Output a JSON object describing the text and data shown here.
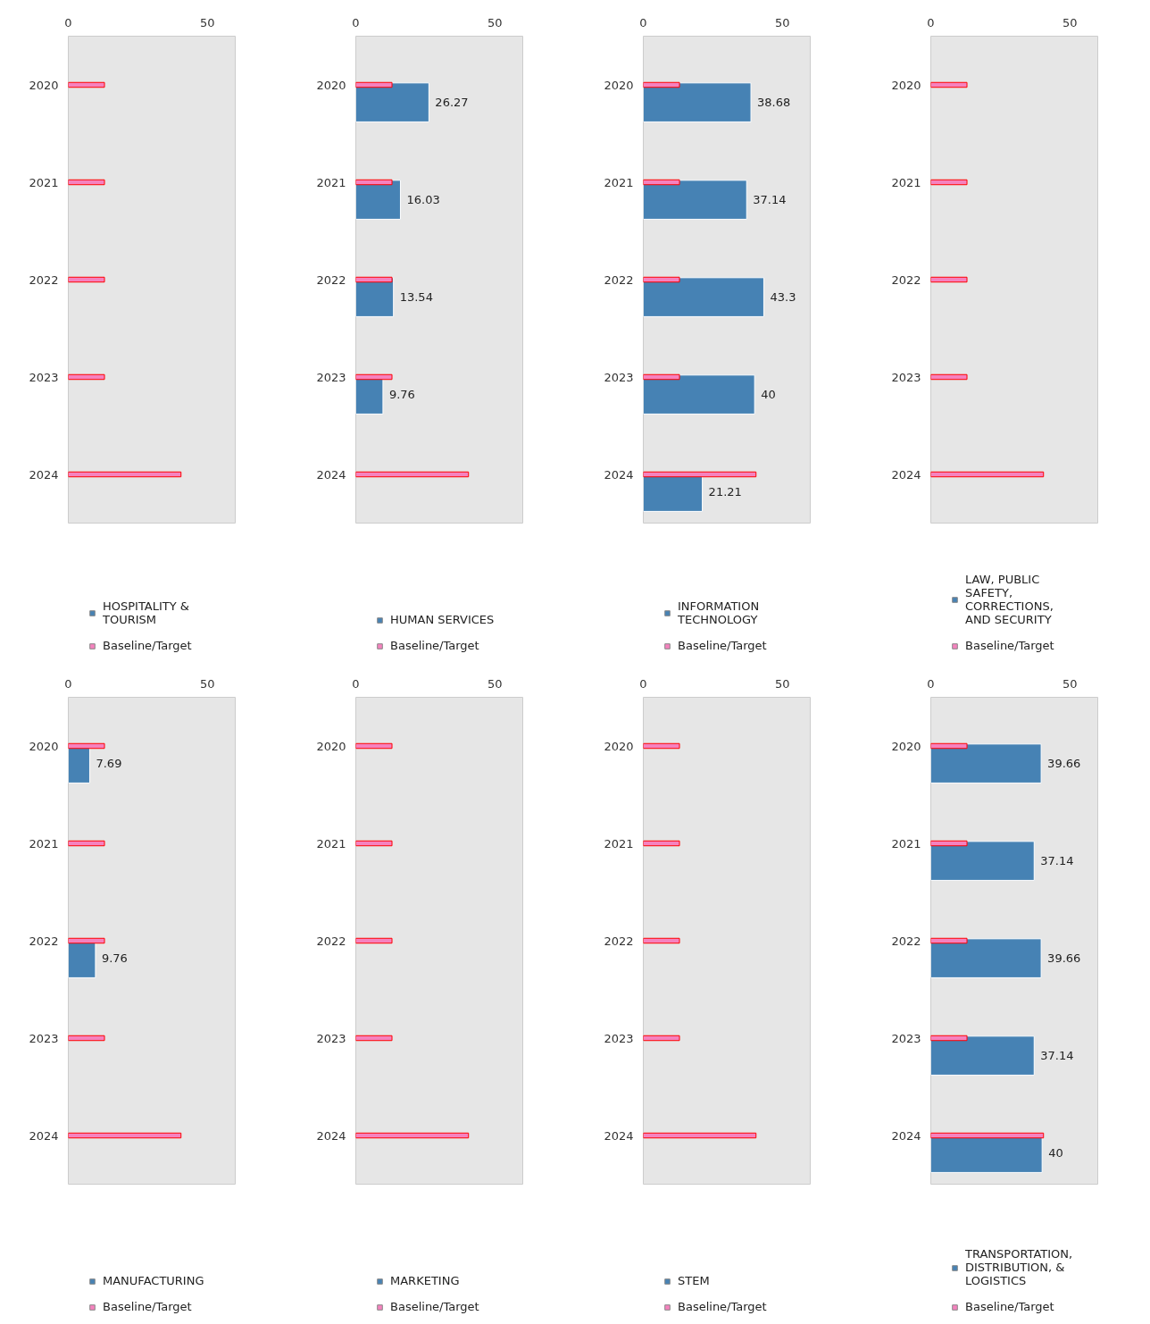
{
  "chart_data": [
    {
      "type": "bar",
      "orientation": "horizontal",
      "categories": [
        "2020",
        "2021",
        "2022",
        "2023",
        "2024"
      ],
      "xlim": [
        0,
        60
      ],
      "xticks": [
        0,
        50
      ],
      "legend": "bottom",
      "series": [
        {
          "name": "HOSPITALITY & TOURISM",
          "color": "#4682b4",
          "values": [
            null,
            null,
            null,
            null,
            null
          ]
        },
        {
          "name": "Baseline/Target",
          "color": "#f582be",
          "values": [
            13,
            13,
            13,
            13,
            40.5
          ]
        }
      ]
    },
    {
      "type": "bar",
      "orientation": "horizontal",
      "categories": [
        "2020",
        "2021",
        "2022",
        "2023",
        "2024"
      ],
      "xlim": [
        0,
        60
      ],
      "xticks": [
        0,
        50
      ],
      "legend": "bottom",
      "series": [
        {
          "name": "HUMAN SERVICES",
          "color": "#4682b4",
          "values": [
            26.27,
            16.03,
            13.54,
            9.76,
            null
          ],
          "value_labels": [
            "26.27",
            "16.03",
            "13.54",
            "9.76",
            null
          ]
        },
        {
          "name": "Baseline/Target",
          "color": "#f582be",
          "values": [
            13,
            13,
            13,
            13,
            40.5
          ]
        }
      ]
    },
    {
      "type": "bar",
      "orientation": "horizontal",
      "categories": [
        "2020",
        "2021",
        "2022",
        "2023",
        "2024"
      ],
      "xlim": [
        0,
        60
      ],
      "xticks": [
        0,
        50
      ],
      "legend": "bottom",
      "series": [
        {
          "name": "INFORMATION TECHNOLOGY",
          "color": "#4682b4",
          "values": [
            38.68,
            37.14,
            43.3,
            40,
            21.21
          ],
          "value_labels": [
            "38.68",
            "37.14",
            "43.3",
            "40",
            "21.21"
          ]
        },
        {
          "name": "Baseline/Target",
          "color": "#f582be",
          "values": [
            13,
            13,
            13,
            13,
            40.5
          ]
        }
      ]
    },
    {
      "type": "bar",
      "orientation": "horizontal",
      "categories": [
        "2020",
        "2021",
        "2022",
        "2023",
        "2024"
      ],
      "xlim": [
        0,
        60
      ],
      "xticks": [
        0,
        50
      ],
      "legend": "bottom",
      "series": [
        {
          "name": "LAW, PUBLIC SAFETY, CORRECTIONS, AND SECURITY",
          "color": "#4682b4",
          "values": [
            null,
            null,
            null,
            null,
            null
          ]
        },
        {
          "name": "Baseline/Target",
          "color": "#f582be",
          "values": [
            13,
            13,
            13,
            13,
            40.5
          ]
        }
      ]
    },
    {
      "type": "bar",
      "orientation": "horizontal",
      "categories": [
        "2020",
        "2021",
        "2022",
        "2023",
        "2024"
      ],
      "xlim": [
        0,
        60
      ],
      "xticks": [
        0,
        50
      ],
      "legend": "bottom",
      "series": [
        {
          "name": "MANUFACTURING",
          "color": "#4682b4",
          "values": [
            7.69,
            null,
            9.76,
            null,
            null
          ],
          "value_labels": [
            "7.69",
            null,
            "9.76",
            null,
            null
          ]
        },
        {
          "name": "Baseline/Target",
          "color": "#f582be",
          "values": [
            13,
            13,
            13,
            13,
            40.5
          ]
        }
      ]
    },
    {
      "type": "bar",
      "orientation": "horizontal",
      "categories": [
        "2020",
        "2021",
        "2022",
        "2023",
        "2024"
      ],
      "xlim": [
        0,
        60
      ],
      "xticks": [
        0,
        50
      ],
      "legend": "bottom",
      "series": [
        {
          "name": "MARKETING",
          "color": "#4682b4",
          "values": [
            null,
            null,
            null,
            null,
            null
          ]
        },
        {
          "name": "Baseline/Target",
          "color": "#f582be",
          "values": [
            13,
            13,
            13,
            13,
            40.5
          ]
        }
      ]
    },
    {
      "type": "bar",
      "orientation": "horizontal",
      "categories": [
        "2020",
        "2021",
        "2022",
        "2023",
        "2024"
      ],
      "xlim": [
        0,
        60
      ],
      "xticks": [
        0,
        50
      ],
      "legend": "bottom",
      "series": [
        {
          "name": "STEM",
          "color": "#4682b4",
          "values": [
            null,
            null,
            null,
            null,
            null
          ]
        },
        {
          "name": "Baseline/Target",
          "color": "#f582be",
          "values": [
            13,
            13,
            13,
            13,
            40.5
          ]
        }
      ]
    },
    {
      "type": "bar",
      "orientation": "horizontal",
      "categories": [
        "2020",
        "2021",
        "2022",
        "2023",
        "2024"
      ],
      "xlim": [
        0,
        60
      ],
      "xticks": [
        0,
        50
      ],
      "legend": "bottom",
      "series": [
        {
          "name": "TRANSPORTATION, DISTRIBUTION, & LOGISTICS",
          "color": "#4682b4",
          "values": [
            39.66,
            37.14,
            39.66,
            37.14,
            40
          ],
          "value_labels": [
            "39.66",
            "37.14",
            "39.66",
            "37.14",
            "40"
          ]
        },
        {
          "name": "Baseline/Target",
          "color": "#f582be",
          "values": [
            13,
            13,
            13,
            13,
            40.5
          ]
        }
      ]
    }
  ]
}
